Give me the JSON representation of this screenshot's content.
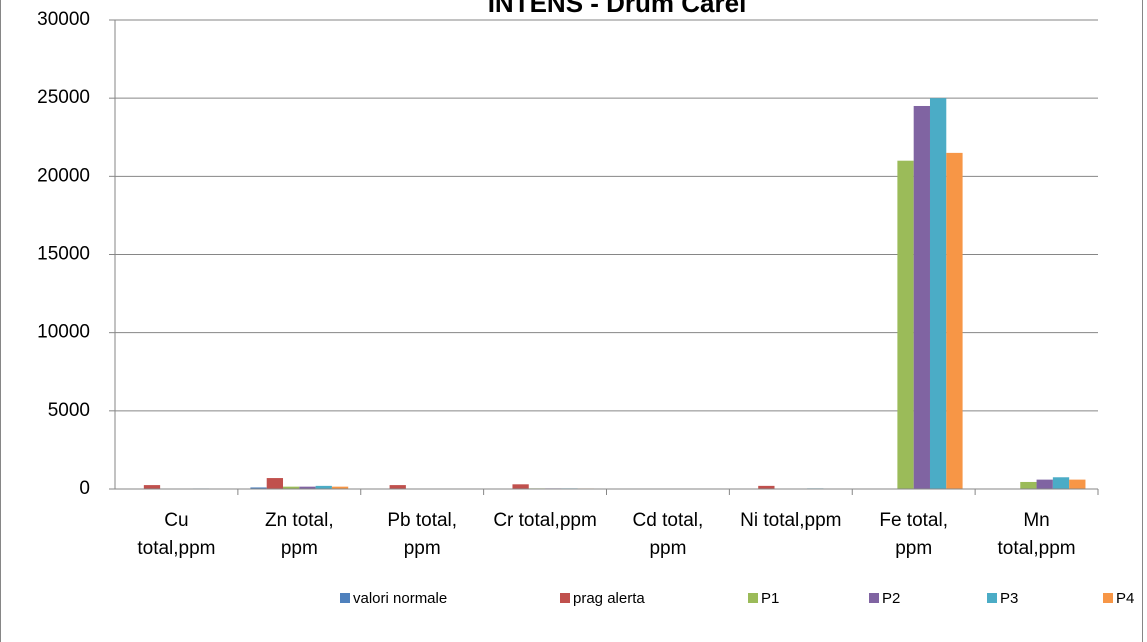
{
  "chart_data": {
    "type": "bar",
    "title": "INTENS - Drum Carei",
    "categories": [
      "Cu total,ppm",
      "Zn total, ppm",
      "Pb total, ppm",
      "Cr total,ppm",
      "Cd total, ppm",
      "Ni total,ppm",
      "Fe total, ppm",
      "Mn total,ppm"
    ],
    "series": [
      {
        "name": "valori normale",
        "color": "#4f81bd",
        "values": [
          20,
          100,
          20,
          30,
          1,
          20,
          0,
          0
        ]
      },
      {
        "name": "prag alerta",
        "color": "#c0504d",
        "values": [
          250,
          700,
          250,
          300,
          5,
          200,
          0,
          0
        ]
      },
      {
        "name": "P1",
        "color": "#9bbb59",
        "values": [
          30,
          150,
          30,
          40,
          1,
          30,
          21000,
          450
        ]
      },
      {
        "name": "P2",
        "color": "#8064a2",
        "values": [
          30,
          150,
          30,
          40,
          1,
          30,
          24500,
          600
        ]
      },
      {
        "name": "P3",
        "color": "#4bacc6",
        "values": [
          35,
          200,
          30,
          40,
          1,
          40,
          25000,
          750
        ]
      },
      {
        "name": "P4",
        "color": "#f79646",
        "values": [
          30,
          150,
          25,
          35,
          1,
          30,
          21500,
          600
        ]
      }
    ],
    "ylim": [
      0,
      30000
    ],
    "yticks": [
      0,
      5000,
      10000,
      15000,
      20000,
      25000,
      30000
    ],
    "grid": true,
    "legend": "bottom"
  }
}
